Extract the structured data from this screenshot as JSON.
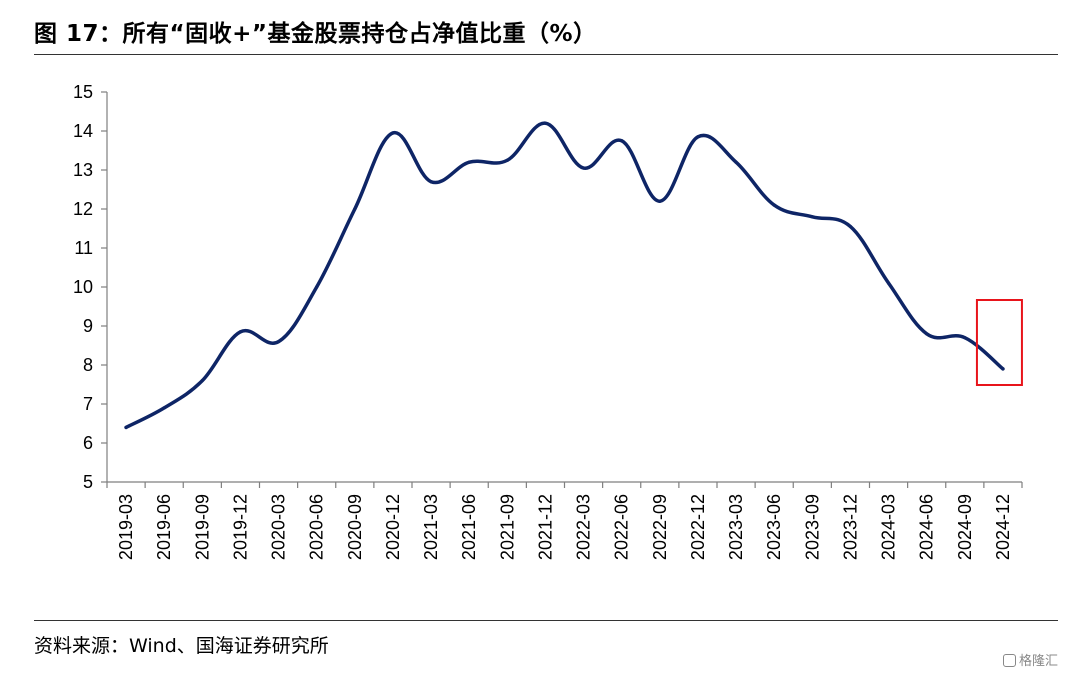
{
  "title": "图 17：所有“固收+”基金股票持仓占净值比重（%）",
  "source": "资料来源：Wind、国海证券研究所",
  "watermark": "格隆汇",
  "colors": {
    "line": "#0e2566",
    "highlight": "#e8141b",
    "axis": "#7f7f7f"
  },
  "chart_data": {
    "type": "line",
    "title": "所有“固收+”基金股票持仓占净值比重（%）",
    "xlabel": "",
    "ylabel": "",
    "ylim": [
      5,
      15
    ],
    "yticks": [
      "5",
      "6",
      "7",
      "8",
      "9",
      "10",
      "11",
      "12",
      "13",
      "14",
      "15"
    ],
    "categories": [
      "2019-03",
      "2019-06",
      "2019-09",
      "2019-12",
      "2020-03",
      "2020-06",
      "2020-09",
      "2020-12",
      "2021-03",
      "2021-06",
      "2021-09",
      "2021-12",
      "2022-03",
      "2022-06",
      "2022-09",
      "2022-12",
      "2023-03",
      "2023-06",
      "2023-09",
      "2023-12",
      "2024-03",
      "2024-06",
      "2024-09",
      "2024-12"
    ],
    "series": [
      {
        "values": [
          6.4,
          6.9,
          7.6,
          8.85,
          8.6,
          10.0,
          12.0,
          13.95,
          12.7,
          13.2,
          13.25,
          14.2,
          13.05,
          13.75,
          12.2,
          13.85,
          13.2,
          12.1,
          11.8,
          11.55,
          10.1,
          8.8,
          8.7,
          7.9
        ]
      }
    ],
    "grid": false,
    "highlight": {
      "category": "2024-12"
    }
  }
}
